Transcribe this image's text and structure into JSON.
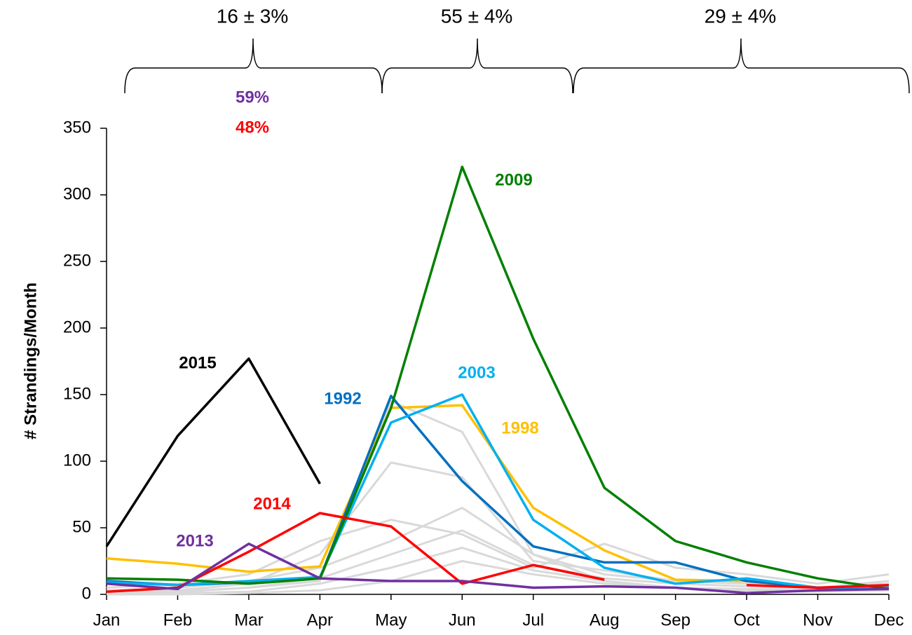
{
  "chart_data": {
    "type": "line",
    "y_label": "# Strandings/Month",
    "categories": [
      "Jan",
      "Feb",
      "Mar",
      "Apr",
      "May",
      "Jun",
      "Jul",
      "Aug",
      "Sep",
      "Oct",
      "Nov",
      "Dec"
    ],
    "ylim": [
      0,
      350
    ],
    "yticks": [
      0,
      50,
      100,
      150,
      200,
      250,
      300,
      350
    ],
    "grid": false,
    "annotations": [
      {
        "text": "16 ± 3%",
        "color": "#000000"
      },
      {
        "text": "55 ± 4%",
        "color": "#000000"
      },
      {
        "text": "29 ± 4%",
        "color": "#000000"
      },
      {
        "text": "59%",
        "color": "#7030a0"
      },
      {
        "text": "48%",
        "color": "#ff0000"
      }
    ],
    "series": [
      {
        "color": "#d9d9d9",
        "values": [
          0,
          2,
          5,
          10,
          145,
          122,
          30,
          10,
          5,
          3,
          2,
          5
        ]
      },
      {
        "color": "#d9d9d9",
        "values": [
          2,
          3,
          8,
          30,
          99,
          88,
          25,
          18,
          10,
          8,
          5,
          10
        ]
      },
      {
        "color": "#d9d9d9",
        "values": [
          5,
          8,
          15,
          40,
          56,
          45,
          20,
          38,
          20,
          15,
          8,
          15
        ]
      },
      {
        "color": "#d9d9d9",
        "values": [
          3,
          5,
          10,
          20,
          40,
          65,
          30,
          15,
          10,
          8,
          5,
          8
        ]
      },
      {
        "color": "#d9d9d9",
        "values": [
          1,
          2,
          5,
          12,
          30,
          48,
          22,
          12,
          8,
          6,
          4,
          6
        ]
      },
      {
        "color": "#d9d9d9",
        "values": [
          0,
          1,
          2,
          8,
          20,
          35,
          18,
          10,
          5,
          4,
          3,
          4
        ]
      },
      {
        "color": "#d9d9d9",
        "values": [
          0,
          0,
          1,
          3,
          10,
          25,
          15,
          8,
          5,
          3,
          2,
          3
        ]
      },
      {
        "name": "1998",
        "color": "#ffc000",
        "values": [
          27,
          23,
          17,
          21,
          140,
          142,
          65,
          33,
          11,
          10,
          5,
          6
        ]
      },
      {
        "name": "1992",
        "color": "#0070c0",
        "values": [
          10,
          7,
          9,
          12,
          149,
          85,
          36,
          24,
          24,
          10,
          5,
          5
        ]
      },
      {
        "name": "2003",
        "color": "#00b0f0",
        "values": [
          9,
          7,
          10,
          13,
          129,
          150,
          56,
          20,
          8,
          12,
          5,
          5
        ]
      },
      {
        "name": "2009",
        "color": "#008000",
        "values": [
          12,
          11,
          8,
          12,
          140,
          321,
          192,
          80,
          40,
          24,
          12,
          4
        ]
      },
      {
        "name": "2015",
        "color": "#000000",
        "values": [
          36,
          119,
          177,
          83,
          null,
          null,
          null,
          null,
          null,
          null,
          null,
          null
        ]
      },
      {
        "name": "2014",
        "color": "#ff0000",
        "values": [
          2,
          5,
          32,
          61,
          51,
          8,
          22,
          11,
          null,
          7,
          5,
          7
        ]
      },
      {
        "name": "2013",
        "color": "#7030a0",
        "values": [
          8,
          4,
          38,
          12,
          10,
          10,
          5,
          6,
          5,
          1,
          3,
          4
        ]
      }
    ]
  }
}
